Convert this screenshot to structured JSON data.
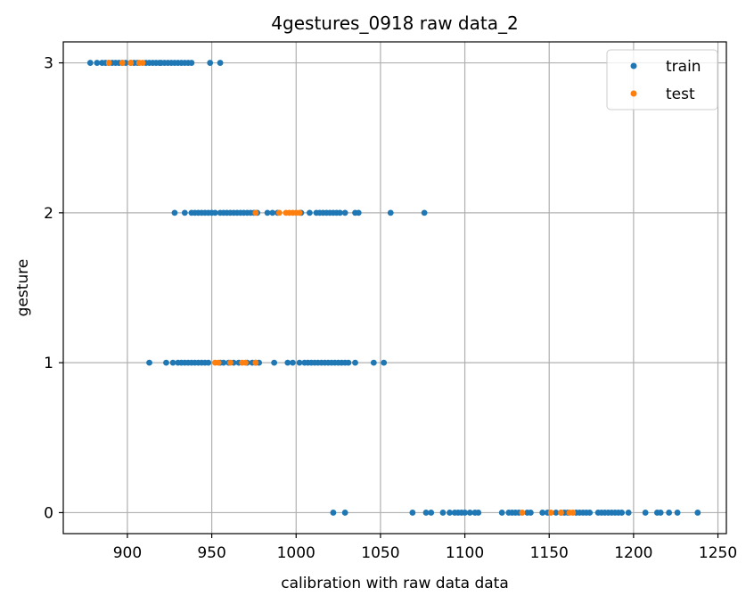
{
  "chart_data": {
    "type": "scatter",
    "title": "4gestures_0918 raw data_2",
    "xlabel": "calibration with raw data data",
    "ylabel": "gesture",
    "xlim": [
      862,
      1255
    ],
    "ylim": [
      -0.14,
      3.14
    ],
    "xticks": [
      900,
      950,
      1000,
      1050,
      1100,
      1150,
      1200,
      1250
    ],
    "yticks": [
      0,
      1,
      2,
      3
    ],
    "grid": true,
    "legend_position": "upper right",
    "series": [
      {
        "name": "train",
        "color": "#1f77b4",
        "points": [
          [
            878,
            3
          ],
          [
            882,
            3
          ],
          [
            885,
            3
          ],
          [
            887,
            3
          ],
          [
            889,
            3
          ],
          [
            891,
            3
          ],
          [
            893,
            3
          ],
          [
            895,
            3
          ],
          [
            897,
            3
          ],
          [
            899,
            3
          ],
          [
            902,
            3
          ],
          [
            904,
            3
          ],
          [
            906,
            3
          ],
          [
            911,
            3
          ],
          [
            913,
            3
          ],
          [
            915,
            3
          ],
          [
            917,
            3
          ],
          [
            919,
            3
          ],
          [
            920,
            3
          ],
          [
            922,
            3
          ],
          [
            924,
            3
          ],
          [
            926,
            3
          ],
          [
            928,
            3
          ],
          [
            930,
            3
          ],
          [
            932,
            3
          ],
          [
            934,
            3
          ],
          [
            936,
            3
          ],
          [
            938,
            3
          ],
          [
            949,
            3
          ],
          [
            955,
            3
          ],
          [
            928,
            2
          ],
          [
            934,
            2
          ],
          [
            938,
            2
          ],
          [
            940,
            2
          ],
          [
            942,
            2
          ],
          [
            944,
            2
          ],
          [
            946,
            2
          ],
          [
            948,
            2
          ],
          [
            950,
            2
          ],
          [
            952,
            2
          ],
          [
            955,
            2
          ],
          [
            957,
            2
          ],
          [
            959,
            2
          ],
          [
            961,
            2
          ],
          [
            963,
            2
          ],
          [
            965,
            2
          ],
          [
            967,
            2
          ],
          [
            969,
            2
          ],
          [
            971,
            2
          ],
          [
            973,
            2
          ],
          [
            975,
            2
          ],
          [
            977,
            2
          ],
          [
            983,
            2
          ],
          [
            986,
            2
          ],
          [
            989,
            2
          ],
          [
            1003,
            2
          ],
          [
            1008,
            2
          ],
          [
            1012,
            2
          ],
          [
            1014,
            2
          ],
          [
            1016,
            2
          ],
          [
            1018,
            2
          ],
          [
            1020,
            2
          ],
          [
            1022,
            2
          ],
          [
            1024,
            2
          ],
          [
            1026,
            2
          ],
          [
            1029,
            2
          ],
          [
            1035,
            2
          ],
          [
            1037,
            2
          ],
          [
            1056,
            2
          ],
          [
            1076,
            2
          ],
          [
            913,
            1
          ],
          [
            923,
            1
          ],
          [
            927,
            1
          ],
          [
            930,
            1
          ],
          [
            932,
            1
          ],
          [
            934,
            1
          ],
          [
            936,
            1
          ],
          [
            938,
            1
          ],
          [
            940,
            1
          ],
          [
            942,
            1
          ],
          [
            944,
            1
          ],
          [
            946,
            1
          ],
          [
            948,
            1
          ],
          [
            955,
            1
          ],
          [
            957,
            1
          ],
          [
            960,
            1
          ],
          [
            963,
            1
          ],
          [
            966,
            1
          ],
          [
            971,
            1
          ],
          [
            974,
            1
          ],
          [
            976,
            1
          ],
          [
            978,
            1
          ],
          [
            987,
            1
          ],
          [
            995,
            1
          ],
          [
            998,
            1
          ],
          [
            1002,
            1
          ],
          [
            1005,
            1
          ],
          [
            1007,
            1
          ],
          [
            1009,
            1
          ],
          [
            1011,
            1
          ],
          [
            1013,
            1
          ],
          [
            1015,
            1
          ],
          [
            1017,
            1
          ],
          [
            1019,
            1
          ],
          [
            1021,
            1
          ],
          [
            1023,
            1
          ],
          [
            1025,
            1
          ],
          [
            1027,
            1
          ],
          [
            1029,
            1
          ],
          [
            1031,
            1
          ],
          [
            1035,
            1
          ],
          [
            1046,
            1
          ],
          [
            1052,
            1
          ],
          [
            1022,
            0
          ],
          [
            1029,
            0
          ],
          [
            1069,
            0
          ],
          [
            1077,
            0
          ],
          [
            1080,
            0
          ],
          [
            1087,
            0
          ],
          [
            1091,
            0
          ],
          [
            1094,
            0
          ],
          [
            1096,
            0
          ],
          [
            1098,
            0
          ],
          [
            1100,
            0
          ],
          [
            1103,
            0
          ],
          [
            1106,
            0
          ],
          [
            1108,
            0
          ],
          [
            1122,
            0
          ],
          [
            1126,
            0
          ],
          [
            1128,
            0
          ],
          [
            1130,
            0
          ],
          [
            1132,
            0
          ],
          [
            1137,
            0
          ],
          [
            1139,
            0
          ],
          [
            1146,
            0
          ],
          [
            1149,
            0
          ],
          [
            1154,
            0
          ],
          [
            1157,
            0
          ],
          [
            1159,
            0
          ],
          [
            1161,
            0
          ],
          [
            1166,
            0
          ],
          [
            1168,
            0
          ],
          [
            1170,
            0
          ],
          [
            1172,
            0
          ],
          [
            1174,
            0
          ],
          [
            1179,
            0
          ],
          [
            1181,
            0
          ],
          [
            1183,
            0
          ],
          [
            1185,
            0
          ],
          [
            1187,
            0
          ],
          [
            1189,
            0
          ],
          [
            1191,
            0
          ],
          [
            1193,
            0
          ],
          [
            1197,
            0
          ],
          [
            1207,
            0
          ],
          [
            1214,
            0
          ],
          [
            1216,
            0
          ],
          [
            1221,
            0
          ],
          [
            1226,
            0
          ],
          [
            1238,
            0
          ]
        ]
      },
      {
        "name": "test",
        "color": "#ff7f0e",
        "points": [
          [
            889,
            3
          ],
          [
            897,
            3
          ],
          [
            902,
            3
          ],
          [
            907,
            3
          ],
          [
            909,
            3
          ],
          [
            976,
            2
          ],
          [
            990,
            2
          ],
          [
            994,
            2
          ],
          [
            996,
            2
          ],
          [
            998,
            2
          ],
          [
            1000,
            2
          ],
          [
            1002,
            2
          ],
          [
            952,
            1
          ],
          [
            954,
            1
          ],
          [
            961,
            1
          ],
          [
            968,
            1
          ],
          [
            970,
            1
          ],
          [
            976,
            1
          ],
          [
            1134,
            0
          ],
          [
            1151,
            0
          ],
          [
            1157,
            0
          ],
          [
            1162,
            0
          ],
          [
            1164,
            0
          ]
        ]
      }
    ]
  }
}
